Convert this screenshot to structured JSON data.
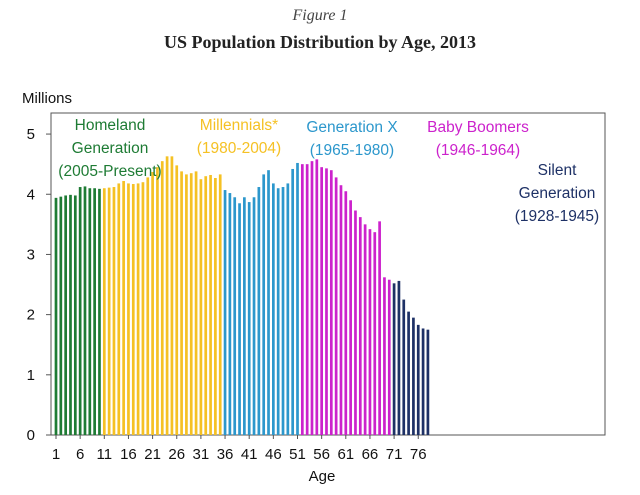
{
  "figure_label": "Figure 1",
  "chart_data": {
    "type": "bar",
    "title": "US Population Distribution by Age, 2013",
    "ylabel": "Millions",
    "xlabel": "Age",
    "ylim": [
      0,
      5.35
    ],
    "yticks": [
      0,
      1,
      2,
      3,
      4,
      5
    ],
    "xtick_labels": [
      "1",
      "6",
      "11",
      "16",
      "21",
      "26",
      "31",
      "36",
      "41",
      "46",
      "51",
      "56",
      "61",
      "66",
      "71",
      "76"
    ],
    "grid": false,
    "series": [
      {
        "name": "Homeland Generation (2005-Present)",
        "color": "#1e7b34",
        "ages": [
          1,
          2,
          3,
          4,
          5,
          6,
          7,
          8,
          9,
          10
        ],
        "values": [
          3.94,
          3.96,
          3.98,
          3.99,
          3.98,
          4.12,
          4.13,
          4.1,
          4.1,
          4.09
        ],
        "label_lines": [
          "Homeland",
          "Generation",
          "(2005-Present)"
        ]
      },
      {
        "name": "Millennials* (1980-2004)",
        "color": "#f5c124",
        "ages": [
          11,
          12,
          13,
          14,
          15,
          16,
          17,
          18,
          19,
          20,
          21,
          22,
          23,
          24,
          25,
          26,
          27,
          28,
          29,
          30,
          31,
          32,
          33,
          34,
          35
        ],
        "values": [
          4.1,
          4.11,
          4.12,
          4.18,
          4.22,
          4.18,
          4.17,
          4.18,
          4.2,
          4.28,
          4.37,
          4.45,
          4.55,
          4.63,
          4.63,
          4.48,
          4.38,
          4.33,
          4.35,
          4.38,
          4.25,
          4.3,
          4.32,
          4.27,
          4.33
        ],
        "label_lines": [
          "Millennials*",
          "(1980-2004)"
        ]
      },
      {
        "name": "Generation X (1965-1980)",
        "color": "#2c97cc",
        "ages": [
          36,
          37,
          38,
          39,
          40,
          41,
          42,
          43,
          44,
          45,
          46,
          47,
          48,
          49,
          50,
          51
        ],
        "values": [
          4.07,
          4.02,
          3.95,
          3.85,
          3.95,
          3.87,
          3.95,
          4.12,
          4.33,
          4.4,
          4.18,
          4.1,
          4.12,
          4.18,
          4.42,
          4.52
        ],
        "label_lines": [
          "Generation X",
          "(1965-1980)"
        ]
      },
      {
        "name": "Baby Boomers (1946-1964)",
        "color": "#cc22cc",
        "ages": [
          52,
          53,
          54,
          55,
          56,
          57,
          58,
          59,
          60,
          61,
          62,
          63,
          64,
          65,
          66,
          67,
          68,
          69,
          70
        ],
        "values": [
          4.5,
          4.5,
          4.55,
          4.58,
          4.45,
          4.43,
          4.4,
          4.28,
          4.15,
          4.05,
          3.9,
          3.73,
          3.62,
          3.5,
          3.42,
          3.37,
          3.55,
          2.62,
          2.58
        ],
        "label_lines": [
          "Baby Boomers",
          "(1946-1964)"
        ]
      },
      {
        "name": "Silent Generation (1928-1945)",
        "color": "#1e3166",
        "ages": [
          71,
          72,
          73,
          74,
          75,
          76,
          77,
          78
        ],
        "values": [
          2.52,
          2.56,
          2.25,
          2.05,
          1.95,
          1.83,
          1.77,
          1.75
        ],
        "label_lines": [
          "Silent",
          "Generation",
          "(1928-1945)"
        ]
      }
    ]
  }
}
